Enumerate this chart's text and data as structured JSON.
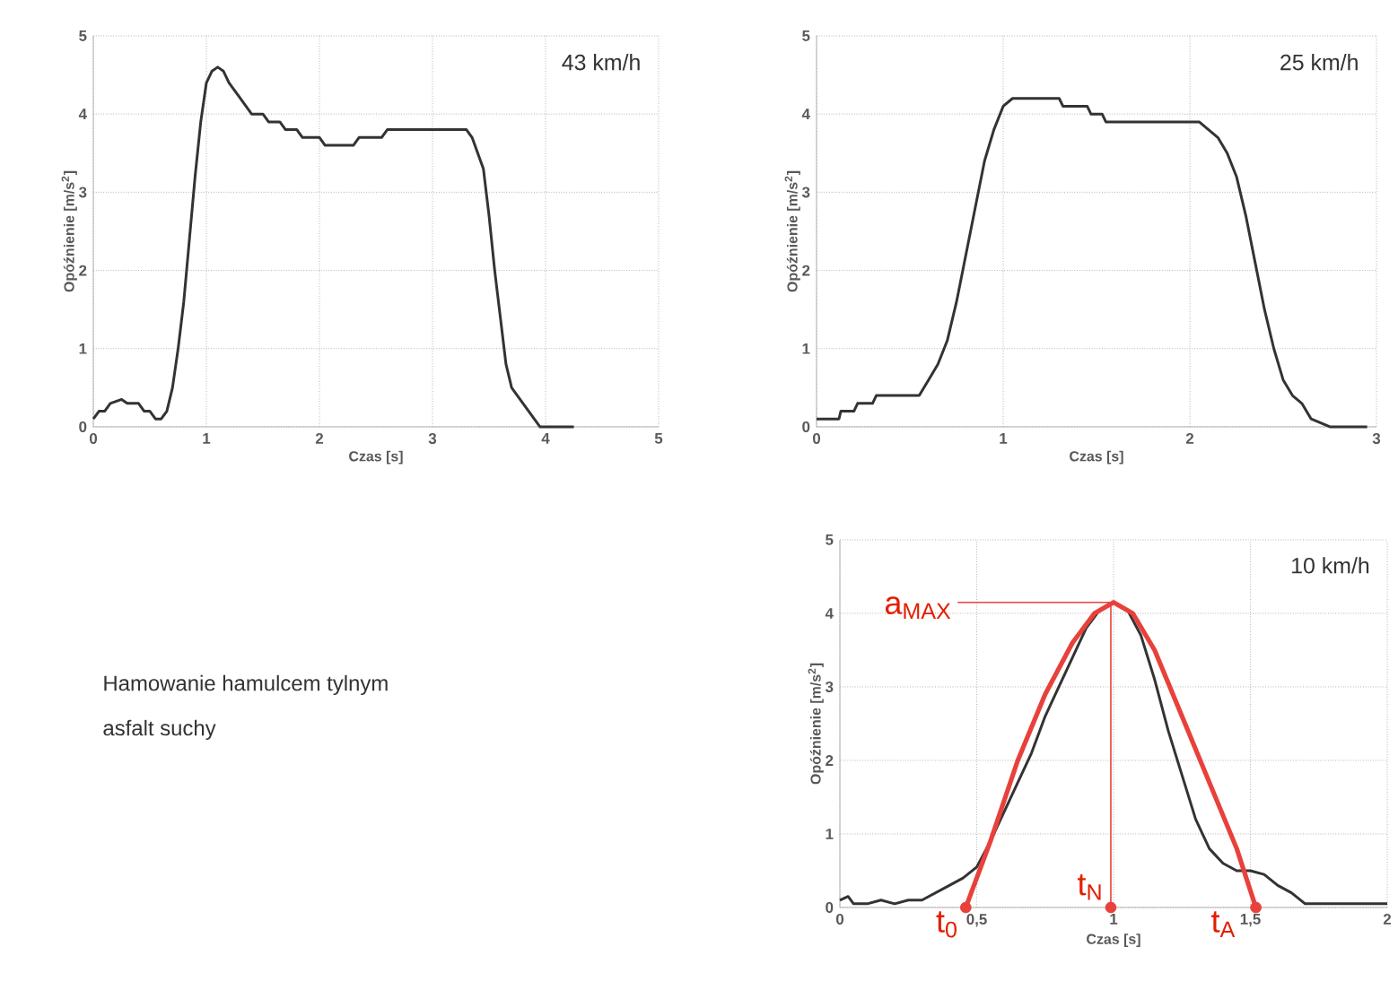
{
  "chart_data": [
    {
      "type": "line",
      "title": "43 km/h",
      "xlabel": "Czas [s]",
      "ylabel": "Opóźnienie [m/s$^{2}$]",
      "xlim": [
        0,
        5
      ],
      "ylim": [
        0,
        5
      ],
      "xticks": [
        0,
        1,
        2,
        3,
        4,
        5
      ],
      "yticks": [
        0,
        1,
        2,
        3,
        4,
        5
      ],
      "grid": true,
      "series": [
        {
          "color": "#333333",
          "x": [
            0,
            0.05,
            0.1,
            0.15,
            0.25,
            0.3,
            0.4,
            0.45,
            0.5,
            0.55,
            0.6,
            0.65,
            0.7,
            0.75,
            0.8,
            0.85,
            0.9,
            0.95,
            1.0,
            1.05,
            1.1,
            1.15,
            1.2,
            1.3,
            1.35,
            1.4,
            1.5,
            1.55,
            1.65,
            1.7,
            1.8,
            1.85,
            2.0,
            2.05,
            2.3,
            2.35,
            2.55,
            2.6,
            3.3,
            3.35,
            3.45,
            3.5,
            3.55,
            3.6,
            3.65,
            3.7,
            3.75,
            3.85,
            3.95,
            4.25
          ],
          "values": [
            0.1,
            0.2,
            0.2,
            0.3,
            0.35,
            0.3,
            0.3,
            0.2,
            0.2,
            0.1,
            0.1,
            0.2,
            0.5,
            1.0,
            1.6,
            2.4,
            3.2,
            3.9,
            4.4,
            4.55,
            4.6,
            4.55,
            4.4,
            4.2,
            4.1,
            4.0,
            4.0,
            3.9,
            3.9,
            3.8,
            3.8,
            3.7,
            3.7,
            3.6,
            3.6,
            3.7,
            3.7,
            3.8,
            3.8,
            3.7,
            3.3,
            2.7,
            2.0,
            1.4,
            0.8,
            0.5,
            0.4,
            0.2,
            0.0,
            0.0
          ]
        }
      ]
    },
    {
      "type": "line",
      "title": "25 km/h",
      "xlabel": "Czas [s]",
      "ylabel": "Opóźnienie [m/s$^{2}$]",
      "xlim": [
        0,
        3
      ],
      "ylim": [
        0,
        5
      ],
      "xticks": [
        0,
        1,
        2,
        3
      ],
      "yticks": [
        0,
        1,
        2,
        3,
        4,
        5
      ],
      "grid": true,
      "series": [
        {
          "color": "#333333",
          "x": [
            0,
            0.12,
            0.13,
            0.2,
            0.22,
            0.3,
            0.32,
            0.55,
            0.6,
            0.65,
            0.7,
            0.75,
            0.8,
            0.85,
            0.9,
            0.95,
            1.0,
            1.05,
            1.3,
            1.32,
            1.45,
            1.47,
            1.53,
            1.55,
            2.05,
            2.1,
            2.15,
            2.2,
            2.25,
            2.3,
            2.35,
            2.4,
            2.45,
            2.5,
            2.55,
            2.6,
            2.65,
            2.7,
            2.75,
            2.95
          ],
          "values": [
            0.1,
            0.1,
            0.2,
            0.2,
            0.3,
            0.3,
            0.4,
            0.4,
            0.6,
            0.8,
            1.1,
            1.6,
            2.2,
            2.8,
            3.4,
            3.8,
            4.1,
            4.2,
            4.2,
            4.1,
            4.1,
            4.0,
            4.0,
            3.9,
            3.9,
            3.8,
            3.7,
            3.5,
            3.2,
            2.7,
            2.1,
            1.5,
            1.0,
            0.6,
            0.4,
            0.3,
            0.1,
            0.05,
            0,
            0
          ]
        }
      ]
    },
    {
      "type": "other",
      "annotations": [
        "Hamowanie hamulcem tylnym",
        "asfalt suchy"
      ]
    },
    {
      "type": "line",
      "title": "10 km/h",
      "xlabel": "Czas [s]",
      "ylabel": "Opóźnienie [m/s$^{2}$]",
      "xlim": [
        0,
        2
      ],
      "ylim": [
        0,
        5
      ],
      "xticks": [
        0,
        {
          "value": 0.5,
          "label": "0,5"
        },
        1,
        {
          "value": 1.5,
          "label": "1,5"
        },
        2
      ],
      "yticks": [
        0,
        1,
        2,
        3,
        4,
        5
      ],
      "grid": true,
      "series": [
        {
          "color": "#333333",
          "x": [
            0,
            0.03,
            0.05,
            0.1,
            0.15,
            0.2,
            0.25,
            0.3,
            0.35,
            0.4,
            0.45,
            0.5,
            0.55,
            0.6,
            0.65,
            0.7,
            0.75,
            0.8,
            0.85,
            0.9,
            0.95,
            1.0,
            1.05,
            1.1,
            1.15,
            1.2,
            1.25,
            1.3,
            1.35,
            1.4,
            1.45,
            1.5,
            1.55,
            1.6,
            1.65,
            1.7,
            1.8,
            1.9,
            2.0
          ],
          "values": [
            0.1,
            0.15,
            0.05,
            0.05,
            0.1,
            0.05,
            0.1,
            0.1,
            0.2,
            0.3,
            0.4,
            0.55,
            0.9,
            1.3,
            1.7,
            2.1,
            2.6,
            3.0,
            3.4,
            3.8,
            4.05,
            4.15,
            4.05,
            3.7,
            3.1,
            2.4,
            1.8,
            1.2,
            0.8,
            0.6,
            0.5,
            0.5,
            0.45,
            0.3,
            0.2,
            0.05,
            0.05,
            0.05,
            0.05
          ]
        },
        {
          "color": "#e8413c",
          "x": [
            0.46,
            0.55,
            0.65,
            0.75,
            0.85,
            0.93,
            1.0,
            1.07,
            1.15,
            1.25,
            1.35,
            1.45,
            1.52
          ],
          "values": [
            0,
            0.9,
            2.0,
            2.9,
            3.6,
            4.0,
            4.15,
            4.0,
            3.5,
            2.6,
            1.7,
            0.8,
            0
          ]
        },
        {
          "color": "#e8413c",
          "x": [
            0.99,
            0.99
          ],
          "values": [
            0,
            4.15
          ]
        },
        {
          "color": "#e8413c",
          "x": [
            0.43,
            0.99
          ],
          "values": [
            4.15,
            4.15
          ]
        },
        {
          "type": "scatter",
          "marker": "circle",
          "color": "#e8413c",
          "x": [
            0.46,
            0.99,
            1.52
          ],
          "values": [
            0,
            0,
            0
          ]
        }
      ],
      "annotations": [
        {
          "text": "a$_{MAX}$",
          "x": 0.43,
          "y": 4.15
        },
        {
          "text": "t$_{0}$",
          "x": 0.46,
          "y": 0
        },
        {
          "text": "t$_{N}$",
          "x": 0.99,
          "y": 0
        },
        {
          "text": "t$_{A}$",
          "x": 1.52,
          "y": 0
        }
      ]
    }
  ]
}
